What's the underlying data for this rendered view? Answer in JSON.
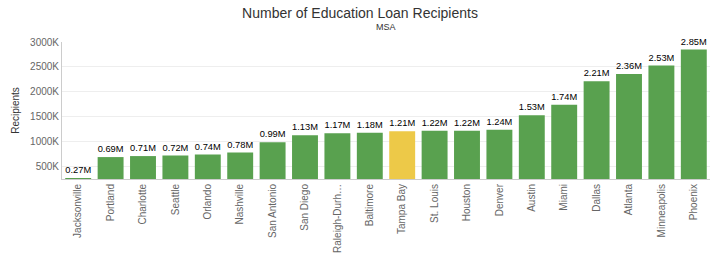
{
  "chart_data": {
    "type": "bar",
    "title": "Number of Education Loan Recipients",
    "x_label": "MSA",
    "y_label": "Recipients",
    "categories": [
      "Jacksonville",
      "Portland",
      "Charlotte",
      "Seattle",
      "Orlando",
      "Nashville",
      "San Antonio",
      "San Diego",
      "Raleigh-Durh…",
      "Baltimore",
      "Tampa Bay",
      "St. Louis",
      "Houston",
      "Denver",
      "Austin",
      "Miami",
      "Dallas",
      "Atlanta",
      "Minneapolis",
      "Phoenix"
    ],
    "values": [
      270000,
      690000,
      710000,
      720000,
      740000,
      780000,
      990000,
      1130000,
      1170000,
      1180000,
      1210000,
      1220000,
      1220000,
      1240000,
      1530000,
      1740000,
      2210000,
      2360000,
      2530000,
      2850000
    ],
    "value_labels": [
      "0.27M",
      "0.69M",
      "0.71M",
      "0.72M",
      "0.74M",
      "0.78M",
      "0.99M",
      "1.13M",
      "1.17M",
      "1.18M",
      "1.21M",
      "1.22M",
      "1.22M",
      "1.24M",
      "1.53M",
      "1.74M",
      "2.21M",
      "2.36M",
      "2.53M",
      "2.85M"
    ],
    "colors": [
      "#59a14f",
      "#59a14f",
      "#59a14f",
      "#59a14f",
      "#59a14f",
      "#59a14f",
      "#59a14f",
      "#59a14f",
      "#59a14f",
      "#59a14f",
      "#edc948",
      "#59a14f",
      "#59a14f",
      "#59a14f",
      "#59a14f",
      "#59a14f",
      "#59a14f",
      "#59a14f",
      "#59a14f",
      "#59a14f"
    ],
    "ylim": [
      250000,
      3000000
    ],
    "yticks": [
      {
        "value": 500000,
        "label": "500K"
      },
      {
        "value": 1000000,
        "label": "1000K"
      },
      {
        "value": 1500000,
        "label": "1500K"
      },
      {
        "value": 2000000,
        "label": "2000K"
      },
      {
        "value": 2500000,
        "label": "2500K"
      },
      {
        "value": 3000000,
        "label": "3000K"
      }
    ],
    "grid": true,
    "data_labels": true
  }
}
